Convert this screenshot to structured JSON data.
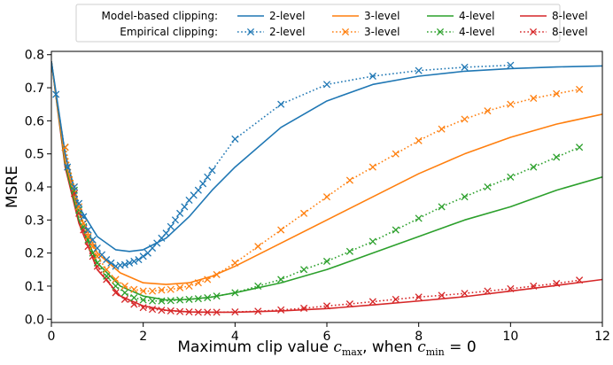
{
  "chart_data": {
    "type": "line",
    "title": "",
    "xlabel_parts": [
      "Maximum clip value ",
      "c",
      "max",
      ", when ",
      "c",
      "min",
      " = 0"
    ],
    "ylabel": "MSRE",
    "xlim": [
      0,
      12
    ],
    "ylim": [
      -0.01,
      0.81
    ],
    "xticks": [
      0,
      2,
      4,
      6,
      8,
      10,
      12
    ],
    "yticks": [
      0.0,
      0.1,
      0.2,
      0.3,
      0.4,
      0.5,
      0.6,
      0.7,
      0.8
    ],
    "ytick_labels": [
      "0.0",
      "0.1",
      "0.2",
      "0.3",
      "0.4",
      "0.5",
      "0.6",
      "0.7",
      "0.8"
    ],
    "grid": false,
    "legend_position": "top",
    "legend_row_labels": [
      "Model-based clipping:",
      "Empirical clipping:"
    ],
    "colors": {
      "2-level": "#1f77b4",
      "3-level": "#ff7f0e",
      "4-level": "#2ca02c",
      "8-level": "#d62728"
    },
    "series": [
      {
        "name": "2-level",
        "style": "solid",
        "group": "Model-based clipping",
        "color": "#1f77b4",
        "x": [
          0,
          0.3,
          0.6,
          1.0,
          1.4,
          1.7,
          2.0,
          2.5,
          3.0,
          3.5,
          4.0,
          5.0,
          6.0,
          7.0,
          8.0,
          9.0,
          10.0,
          11.0,
          12.0
        ],
        "y": [
          0.78,
          0.5,
          0.34,
          0.25,
          0.21,
          0.205,
          0.21,
          0.245,
          0.31,
          0.39,
          0.46,
          0.58,
          0.66,
          0.71,
          0.735,
          0.75,
          0.758,
          0.763,
          0.766
        ]
      },
      {
        "name": "3-level",
        "style": "solid",
        "group": "Model-based clipping",
        "color": "#ff7f0e",
        "x": [
          0,
          0.3,
          0.6,
          1.0,
          1.5,
          2.0,
          2.5,
          3.0,
          3.5,
          4.0,
          5.0,
          6.0,
          7.0,
          8.0,
          9.0,
          10.0,
          11.0,
          12.0
        ],
        "y": [
          0.78,
          0.48,
          0.32,
          0.2,
          0.14,
          0.11,
          0.105,
          0.11,
          0.13,
          0.16,
          0.23,
          0.3,
          0.37,
          0.44,
          0.5,
          0.55,
          0.59,
          0.62
        ]
      },
      {
        "name": "4-level",
        "style": "solid",
        "group": "Model-based clipping",
        "color": "#2ca02c",
        "x": [
          0,
          0.3,
          0.6,
          1.0,
          1.5,
          2.0,
          2.5,
          3.0,
          3.5,
          4.0,
          5.0,
          6.0,
          7.0,
          8.0,
          9.0,
          10.0,
          11.0,
          12.0
        ],
        "y": [
          0.78,
          0.47,
          0.3,
          0.17,
          0.1,
          0.07,
          0.058,
          0.06,
          0.067,
          0.08,
          0.11,
          0.15,
          0.2,
          0.25,
          0.3,
          0.34,
          0.39,
          0.43
        ]
      },
      {
        "name": "8-level",
        "style": "solid",
        "group": "Model-based clipping",
        "color": "#d62728",
        "x": [
          0,
          0.3,
          0.6,
          1.0,
          1.5,
          2.0,
          2.5,
          3.0,
          3.5,
          4.0,
          5.0,
          6.0,
          7.0,
          8.0,
          9.0,
          10.0,
          11.0,
          12.0
        ],
        "y": [
          0.78,
          0.46,
          0.29,
          0.15,
          0.07,
          0.04,
          0.027,
          0.022,
          0.021,
          0.021,
          0.025,
          0.032,
          0.043,
          0.055,
          0.068,
          0.085,
          0.102,
          0.12
        ]
      },
      {
        "name": "2-level",
        "style": "dotted",
        "group": "Empirical clipping",
        "color": "#1f77b4",
        "x": [
          0.1,
          0.35,
          0.5,
          0.6,
          0.7,
          0.8,
          0.9,
          1.0,
          1.1,
          1.2,
          1.3,
          1.4,
          1.5,
          1.6,
          1.7,
          1.8,
          1.9,
          2.0,
          2.1,
          2.2,
          2.3,
          2.4,
          2.5,
          2.6,
          2.7,
          2.8,
          2.9,
          3.0,
          3.1,
          3.2,
          3.3,
          3.4,
          3.5,
          4.0,
          5.0,
          6.0,
          7.0,
          8.0,
          9.0,
          10.0
        ],
        "y": [
          0.68,
          0.46,
          0.4,
          0.35,
          0.31,
          0.27,
          0.24,
          0.215,
          0.195,
          0.18,
          0.17,
          0.16,
          0.163,
          0.165,
          0.17,
          0.175,
          0.18,
          0.19,
          0.2,
          0.215,
          0.23,
          0.245,
          0.26,
          0.28,
          0.3,
          0.32,
          0.34,
          0.36,
          0.375,
          0.39,
          0.41,
          0.43,
          0.45,
          0.545,
          0.65,
          0.71,
          0.735,
          0.752,
          0.762,
          0.768
        ]
      },
      {
        "name": "3-level",
        "style": "dotted",
        "group": "Empirical clipping",
        "color": "#ff7f0e",
        "x": [
          0.3,
          0.5,
          0.6,
          0.7,
          0.8,
          0.9,
          1.0,
          1.2,
          1.4,
          1.6,
          1.8,
          2.0,
          2.2,
          2.4,
          2.6,
          2.8,
          3.0,
          3.2,
          3.4,
          3.6,
          4.0,
          4.5,
          5.0,
          5.5,
          6.0,
          6.5,
          7.0,
          7.5,
          8.0,
          8.5,
          9.0,
          9.5,
          10.0,
          10.5,
          11.0,
          11.5
        ],
        "y": [
          0.52,
          0.4,
          0.34,
          0.29,
          0.25,
          0.22,
          0.19,
          0.15,
          0.12,
          0.1,
          0.09,
          0.085,
          0.085,
          0.088,
          0.09,
          0.095,
          0.1,
          0.11,
          0.12,
          0.135,
          0.17,
          0.22,
          0.27,
          0.32,
          0.37,
          0.42,
          0.46,
          0.5,
          0.54,
          0.575,
          0.605,
          0.63,
          0.65,
          0.668,
          0.682,
          0.695
        ]
      },
      {
        "name": "4-level",
        "style": "dotted",
        "group": "Empirical clipping",
        "color": "#2ca02c",
        "x": [
          0.3,
          0.5,
          0.6,
          0.7,
          0.8,
          0.9,
          1.0,
          1.2,
          1.4,
          1.6,
          1.8,
          2.0,
          2.2,
          2.4,
          2.6,
          2.8,
          3.0,
          3.2,
          3.4,
          3.6,
          4.0,
          4.5,
          5.0,
          5.5,
          6.0,
          6.5,
          7.0,
          7.5,
          8.0,
          8.5,
          9.0,
          9.5,
          10.0,
          10.5,
          11.0,
          11.5
        ],
        "y": [
          0.52,
          0.39,
          0.33,
          0.28,
          0.24,
          0.2,
          0.17,
          0.13,
          0.1,
          0.08,
          0.065,
          0.058,
          0.055,
          0.055,
          0.056,
          0.058,
          0.06,
          0.062,
          0.065,
          0.07,
          0.08,
          0.1,
          0.12,
          0.15,
          0.175,
          0.205,
          0.235,
          0.27,
          0.305,
          0.34,
          0.37,
          0.4,
          0.43,
          0.46,
          0.49,
          0.52
        ]
      },
      {
        "name": "8-level",
        "style": "dotted",
        "group": "Empirical clipping",
        "color": "#d62728",
        "x": [
          0.3,
          0.5,
          0.6,
          0.7,
          0.8,
          0.9,
          1.0,
          1.2,
          1.4,
          1.6,
          1.8,
          2.0,
          2.2,
          2.4,
          2.6,
          2.8,
          3.0,
          3.2,
          3.4,
          3.6,
          4.0,
          4.5,
          5.0,
          5.5,
          6.0,
          6.5,
          7.0,
          7.5,
          8.0,
          8.5,
          9.0,
          9.5,
          10.0,
          10.5,
          11.0,
          11.5
        ],
        "y": [
          0.52,
          0.38,
          0.32,
          0.27,
          0.22,
          0.19,
          0.16,
          0.12,
          0.08,
          0.06,
          0.045,
          0.035,
          0.03,
          0.027,
          0.025,
          0.023,
          0.022,
          0.021,
          0.021,
          0.021,
          0.022,
          0.024,
          0.028,
          0.033,
          0.04,
          0.046,
          0.053,
          0.06,
          0.067,
          0.072,
          0.078,
          0.085,
          0.092,
          0.1,
          0.108,
          0.118
        ]
      }
    ]
  }
}
